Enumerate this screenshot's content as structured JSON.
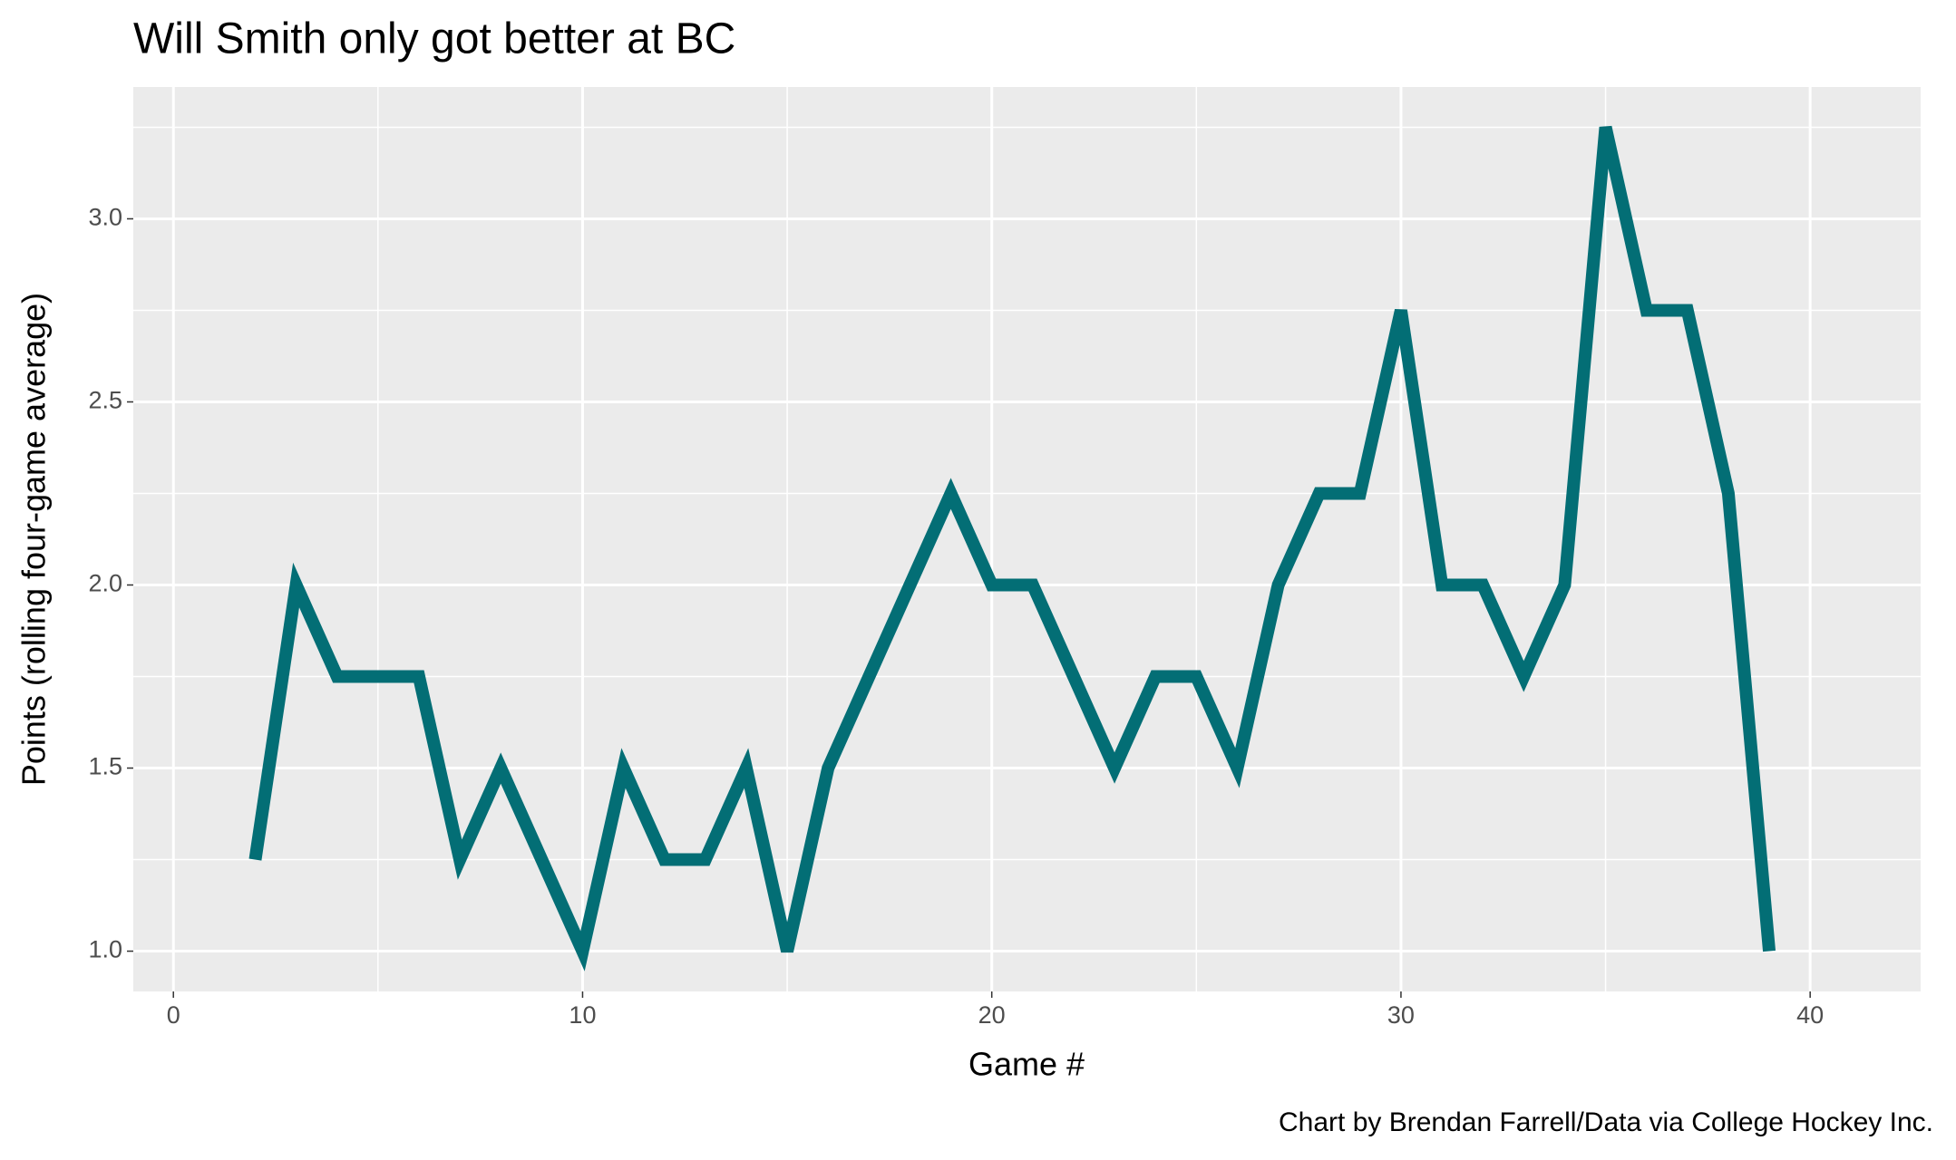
{
  "chart_data": {
    "type": "line",
    "title": "Will Smith only got better at BC",
    "x_label": "Game #",
    "y_label": "Points (rolling four-game average)",
    "caption": "Chart by Brendan Farrell/Data via College Hockey Inc.",
    "x": [
      2,
      3,
      4,
      5,
      6,
      7,
      8,
      9,
      10,
      11,
      12,
      13,
      14,
      15,
      16,
      17,
      18,
      19,
      20,
      21,
      22,
      23,
      24,
      25,
      26,
      27,
      28,
      29,
      30,
      31,
      32,
      33,
      34,
      35,
      36,
      37,
      38,
      39
    ],
    "series": [
      {
        "name": "Points",
        "color": "#036e75",
        "values": [
          1.25,
          2.0,
          1.75,
          1.75,
          1.75,
          1.25,
          1.5,
          1.25,
          1.0,
          1.5,
          1.25,
          1.25,
          1.5,
          1.0,
          1.5,
          1.75,
          2.0,
          2.25,
          2.0,
          2.0,
          1.75,
          1.5,
          1.75,
          1.75,
          1.5,
          2.0,
          2.25,
          2.25,
          2.75,
          2.0,
          2.0,
          1.75,
          2.0,
          3.25,
          2.75,
          2.75,
          2.25,
          1.0
        ]
      }
    ],
    "xlim": [
      -0.98,
      42.7
    ],
    "xticks": [
      0,
      10,
      20,
      30,
      40
    ],
    "ylim": [
      0.89,
      3.36
    ],
    "yticks": [
      {
        "value": 1,
        "label": "1.0"
      },
      {
        "value": 1.5,
        "label": "1.5"
      },
      {
        "value": 2,
        "label": "2.0"
      },
      {
        "value": 2.5,
        "label": "2.5"
      },
      {
        "value": 3,
        "label": "3.0"
      }
    ],
    "grid": true
  }
}
